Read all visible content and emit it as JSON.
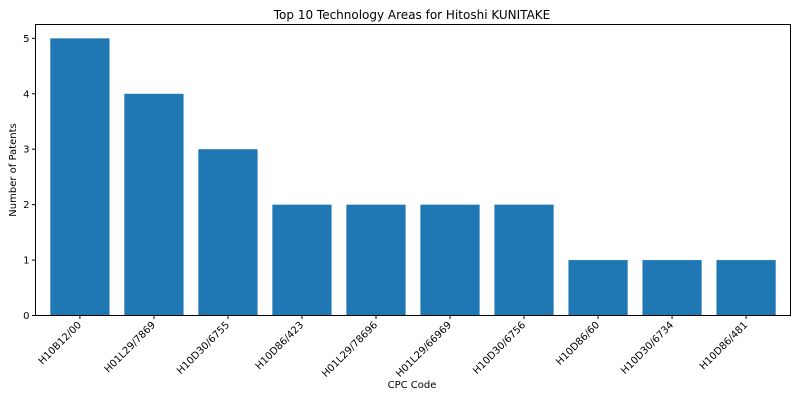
{
  "chart_data": {
    "type": "bar",
    "title": "Top 10 Technology Areas for Hitoshi KUNITAKE",
    "xlabel": "CPC Code",
    "ylabel": "Number of Patents",
    "categories": [
      "H10B12/00",
      "H01L29/7869",
      "H10D30/6755",
      "H10D86/423",
      "H01L29/78696",
      "H01L29/66969",
      "H10D30/6756",
      "H10D86/60",
      "H10D30/6734",
      "H10D86/481"
    ],
    "values": [
      5,
      4,
      3,
      2,
      2,
      2,
      2,
      1,
      1,
      1
    ],
    "ylim": [
      0,
      5.25
    ],
    "yticks": [
      "0",
      "1",
      "2",
      "3",
      "4",
      "5"
    ],
    "grid": false,
    "legend": "none",
    "colors": {
      "bar": "#1f77b4",
      "axis": "#000000"
    }
  }
}
